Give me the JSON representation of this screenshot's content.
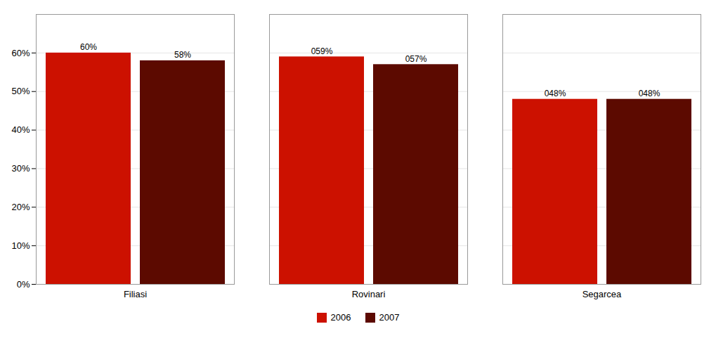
{
  "chart_data": {
    "type": "bar",
    "categories": [
      "Filiasi",
      "Rovinari",
      "Segarcea"
    ],
    "series": [
      {
        "name": "2006",
        "color": "#CC1100",
        "values": [
          0.6,
          0.59,
          0.48
        ],
        "value_labels": [
          "60%",
          "059%",
          "048%"
        ]
      },
      {
        "name": "2007",
        "color": "#5C0A00",
        "values": [
          0.58,
          0.57,
          0.48
        ],
        "value_labels": [
          "58%",
          "057%",
          "048%"
        ]
      }
    ],
    "ylim": [
      0,
      0.7
    ],
    "yticks": [
      {
        "value": 0.0,
        "label": "0%"
      },
      {
        "value": 0.1,
        "label": "10%"
      },
      {
        "value": 0.2,
        "label": "20%"
      },
      {
        "value": 0.3,
        "label": "30%"
      },
      {
        "value": 0.4,
        "label": "40%"
      },
      {
        "value": 0.5,
        "label": "50%"
      },
      {
        "value": 0.6,
        "label": "60%"
      }
    ],
    "grid": true,
    "data_labels": true,
    "legend": "bottom"
  }
}
